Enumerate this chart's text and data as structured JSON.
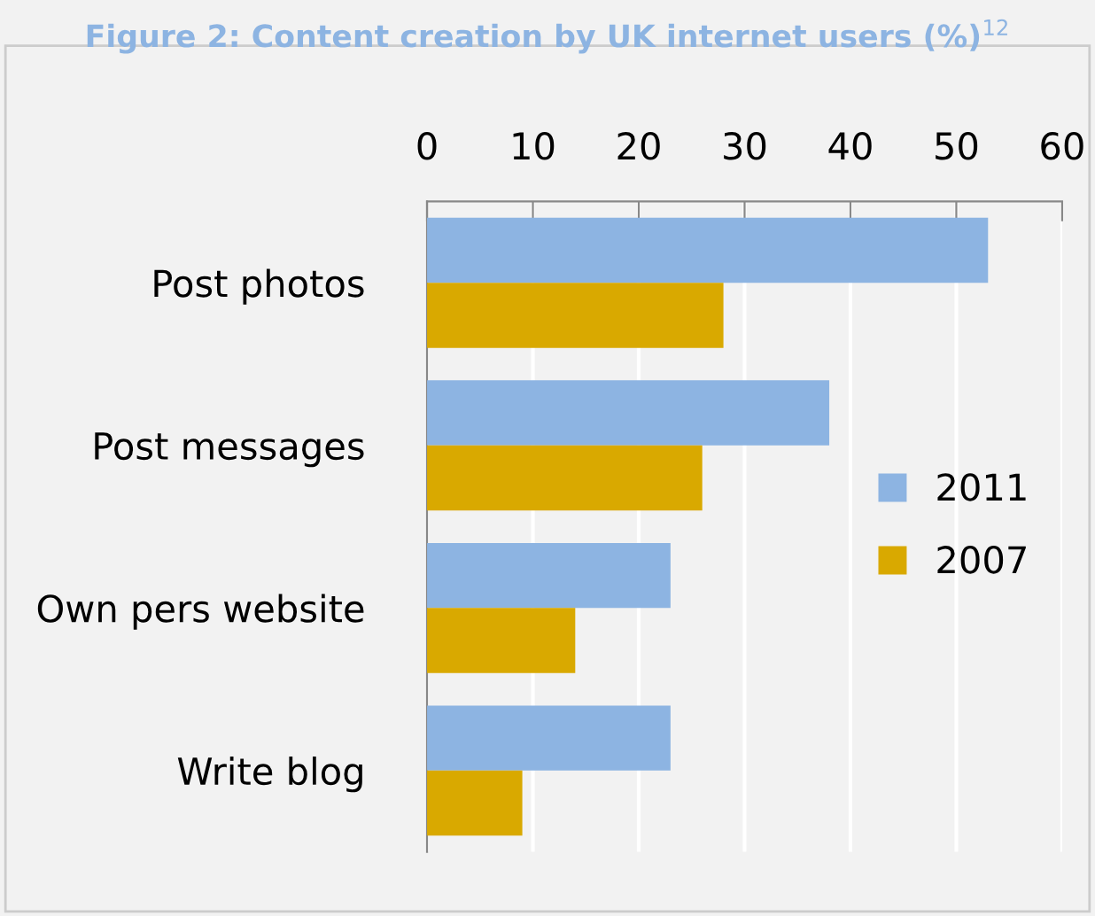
{
  "chart_data": {
    "type": "bar",
    "orientation": "horizontal",
    "title": "Figure 2: Content creation by UK internet users (%)$^{12}$",
    "categories": [
      "Post photos",
      "Post messages",
      "Own pers website",
      "Write blog"
    ],
    "series": [
      {
        "name": "2011",
        "color": "#8db4e2",
        "values": [
          53,
          38,
          23,
          23
        ]
      },
      {
        "name": "2007",
        "color": "#d9a900",
        "values": [
          28,
          26,
          14,
          9
        ]
      }
    ],
    "xlim": [
      0,
      60
    ],
    "xticks": [
      0,
      10,
      20,
      30,
      40,
      50,
      60
    ],
    "grid": "x",
    "legend": "right"
  }
}
